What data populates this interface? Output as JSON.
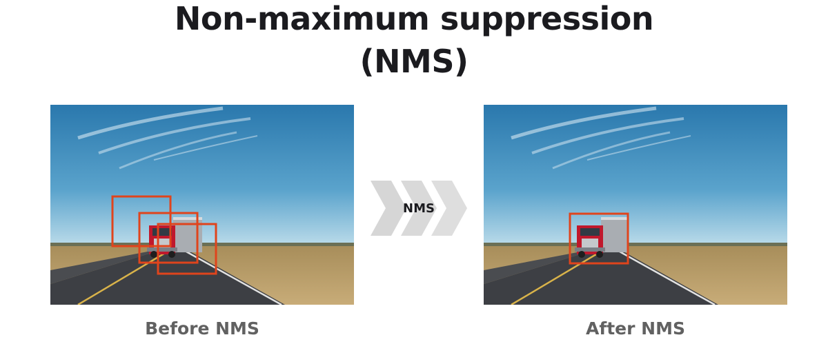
{
  "title": {
    "line1": "Non-maximum suppression",
    "line2": "(NMS)"
  },
  "arrow": {
    "label": "NMS",
    "icon": "chevron-arrows-icon"
  },
  "before": {
    "caption": "Before NMS",
    "box_count": 3
  },
  "after": {
    "caption": "After NMS",
    "box_count": 1
  },
  "colors": {
    "box_outline": "#e0441c",
    "sky_top": "#2f7fb4",
    "sky_bottom": "#b9dcec",
    "truck_cab": "#c0182c",
    "arrow_gray": "#d6d6d6"
  }
}
